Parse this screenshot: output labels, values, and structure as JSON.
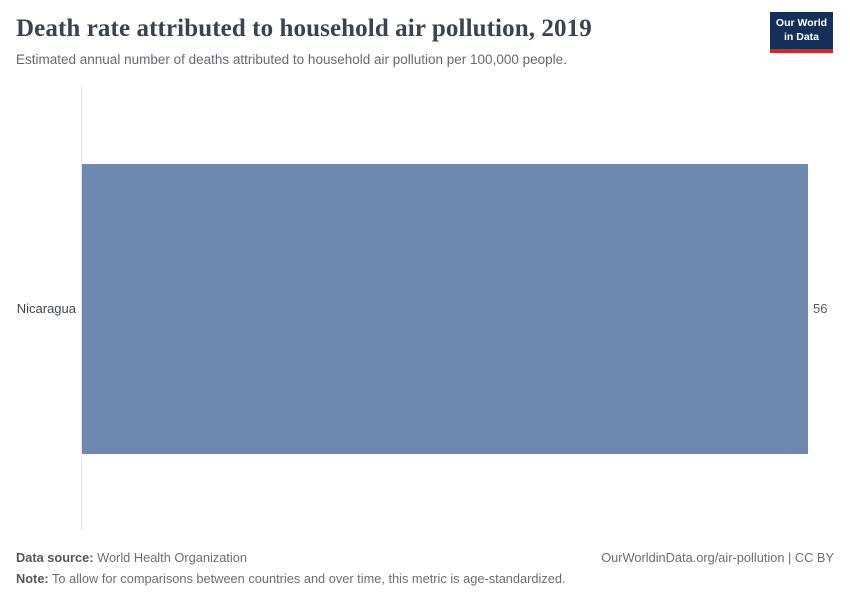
{
  "header": {
    "title": "Death rate attributed to household air pollution, 2019",
    "subtitle": "Estimated annual number of deaths attributed to household air pollution per 100,000 people.",
    "logo": {
      "line1": "Our World",
      "line2": "in Data"
    }
  },
  "chart_data": {
    "type": "bar",
    "orientation": "horizontal",
    "title": "Death rate attributed to household air pollution, 2019",
    "categories": [
      "Nicaragua"
    ],
    "values": [
      56
    ],
    "value_labels": [
      "56"
    ],
    "xlim": [
      0,
      56
    ],
    "grid": false,
    "legend": false,
    "bar_color": "#6f88af"
  },
  "colors": {
    "bar": "#6f88af",
    "logo_background": "#12305a",
    "logo_stripe": "#d22a20",
    "title_text": "#3b4350",
    "axis_line": "#e3e3e3"
  },
  "footer": {
    "datasource_label": "Data source:",
    "datasource_value": "World Health Organization",
    "rights": "OurWorldinData.org/air-pollution | CC BY",
    "note_label": "Note:",
    "note_value": "To allow for comparisons between countries and over time, this metric is age-standardized."
  }
}
